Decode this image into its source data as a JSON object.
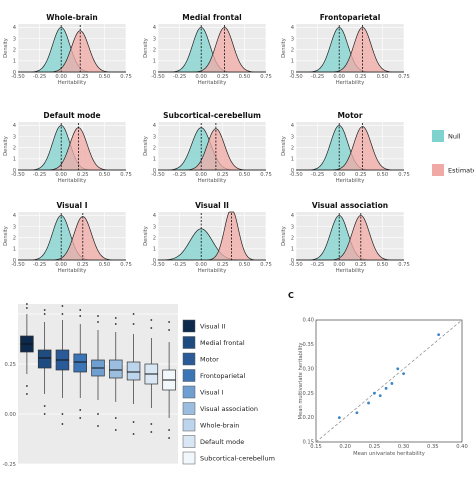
{
  "chart_data": [
    {
      "type": "area",
      "x_label": "Heritability",
      "y_label": "Density",
      "x_range": [
        -0.5,
        0.75
      ],
      "y_range": [
        0,
        4.3
      ],
      "x_ticks": [
        "-0.50",
        "-0.25",
        "0.00",
        "0.25",
        "0.50",
        "0.75"
      ],
      "y_ticks": [
        "0",
        "1",
        "2",
        "3",
        "4"
      ],
      "grid": true,
      "legend": {
        "placement": "right",
        "entries": [
          {
            "label": "Null",
            "color": "#7fd3cf"
          },
          {
            "label": "Estimate",
            "color": "#f1a9a6"
          }
        ]
      },
      "panels": [
        {
          "title": "Whole-brain",
          "null_mean": 0.0,
          "null_sd": 0.1,
          "null_peak": 4.0,
          "est_mean": 0.22,
          "est_sd": 0.1,
          "est_peak": 3.7
        },
        {
          "title": "Medial frontal",
          "null_mean": 0.0,
          "null_sd": 0.1,
          "null_peak": 4.0,
          "est_mean": 0.27,
          "est_sd": 0.1,
          "est_peak": 4.0
        },
        {
          "title": "Frontoparietal",
          "null_mean": 0.0,
          "null_sd": 0.1,
          "null_peak": 4.0,
          "est_mean": 0.27,
          "est_sd": 0.1,
          "est_peak": 4.0
        },
        {
          "title": "Default mode",
          "null_mean": 0.0,
          "null_sd": 0.1,
          "null_peak": 4.0,
          "est_mean": 0.2,
          "est_sd": 0.1,
          "est_peak": 3.8
        },
        {
          "title": "Subcortical-cerebellum",
          "null_mean": 0.0,
          "null_sd": 0.11,
          "null_peak": 3.8,
          "est_mean": 0.17,
          "est_sd": 0.1,
          "est_peak": 3.7
        },
        {
          "title": "Motor",
          "null_mean": 0.0,
          "null_sd": 0.1,
          "null_peak": 4.0,
          "est_mean": 0.27,
          "est_sd": 0.1,
          "est_peak": 3.9
        },
        {
          "title": "Visual I",
          "null_mean": 0.0,
          "null_sd": 0.1,
          "null_peak": 4.0,
          "est_mean": 0.25,
          "est_sd": 0.1,
          "est_peak": 3.9
        },
        {
          "title": "Visual II",
          "null_mean": 0.0,
          "null_sd": 0.13,
          "null_peak": 2.8,
          "est_mean": 0.35,
          "est_sd": 0.08,
          "est_peak": 4.6
        },
        {
          "title": "Visual association",
          "null_mean": 0.0,
          "null_sd": 0.1,
          "null_peak": 4.0,
          "est_mean": 0.25,
          "est_sd": 0.1,
          "est_peak": 4.0
        }
      ]
    },
    {
      "type": "bar",
      "subtype": "box",
      "y_ticks": [
        "0.25",
        "0.00",
        "-0.25"
      ],
      "y_range": [
        -0.25,
        0.55
      ],
      "grid": true,
      "legend": {
        "placement": "right"
      },
      "boxes": [
        {
          "label": "Visual II",
          "color": "#0d2a4d",
          "q1": 0.31,
          "median": 0.35,
          "q3": 0.39,
          "lo": 0.2,
          "hi": 0.5,
          "out": [
            0.53,
            0.55,
            0.14,
            0.1
          ]
        },
        {
          "label": "Medial frontal",
          "color": "#1f4c80",
          "q1": 0.23,
          "median": 0.28,
          "q3": 0.32,
          "lo": 0.1,
          "hi": 0.46,
          "out": [
            0.5,
            0.52,
            0.04,
            0.0
          ]
        },
        {
          "label": "Motor",
          "color": "#2a5b98",
          "q1": 0.22,
          "median": 0.27,
          "q3": 0.32,
          "lo": 0.08,
          "hi": 0.47,
          "out": [
            0.5,
            0.54,
            0.0,
            -0.05
          ]
        },
        {
          "label": "Frontoparietal",
          "color": "#3b75b5",
          "q1": 0.21,
          "median": 0.26,
          "q3": 0.3,
          "lo": 0.08,
          "hi": 0.45,
          "out": [
            0.49,
            0.52,
            0.02,
            -0.02
          ]
        },
        {
          "label": "Visual I",
          "color": "#6e9fd0",
          "q1": 0.19,
          "median": 0.23,
          "q3": 0.27,
          "lo": 0.07,
          "hi": 0.42,
          "out": [
            0.46,
            0.49,
            0.0,
            -0.06
          ]
        },
        {
          "label": "Visual association",
          "color": "#9bbde0",
          "q1": 0.18,
          "median": 0.22,
          "q3": 0.27,
          "lo": 0.06,
          "hi": 0.41,
          "out": [
            0.45,
            0.48,
            -0.02,
            -0.08
          ]
        },
        {
          "label": "Whole-brain",
          "color": "#bcd4ec",
          "q1": 0.17,
          "median": 0.21,
          "q3": 0.26,
          "lo": 0.05,
          "hi": 0.4,
          "out": [
            0.45,
            0.5,
            -0.04,
            -0.1
          ]
        },
        {
          "label": "Default mode",
          "color": "#d9e7f5",
          "q1": 0.15,
          "median": 0.2,
          "q3": 0.25,
          "lo": 0.03,
          "hi": 0.38,
          "out": [
            0.43,
            0.47,
            -0.05,
            -0.09
          ]
        },
        {
          "label": "Subcortical-cerebellum",
          "color": "#f2f7fc",
          "q1": 0.12,
          "median": 0.17,
          "q3": 0.22,
          "lo": -0.02,
          "hi": 0.36,
          "out": [
            0.42,
            0.46,
            -0.08,
            -0.12
          ]
        }
      ]
    },
    {
      "type": "scatter",
      "panel_label": "C",
      "x_label": "Mean univariate heritability",
      "y_label": "Mean multivariate heritability",
      "x_range": [
        0.15,
        0.4
      ],
      "y_range": [
        0.15,
        0.4
      ],
      "x_ticks": [
        "0.15",
        "0.20",
        "0.25",
        "0.30",
        "0.35",
        "0.40"
      ],
      "y_ticks": [
        "0.15",
        "0.20",
        "0.25",
        "0.30",
        "0.35",
        "0.40"
      ],
      "reference_line": "y = x",
      "x": [
        0.19,
        0.22,
        0.24,
        0.25,
        0.26,
        0.27,
        0.28,
        0.29,
        0.3,
        0.36
      ],
      "y": [
        0.2,
        0.21,
        0.23,
        0.25,
        0.245,
        0.26,
        0.27,
        0.3,
        0.29,
        0.37
      ]
    }
  ]
}
